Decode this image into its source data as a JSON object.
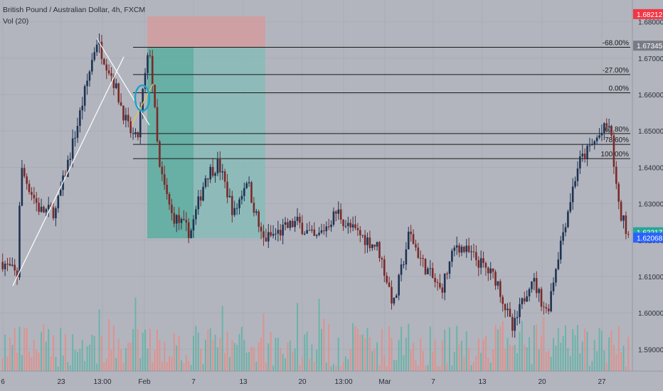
{
  "legend": {
    "symbol": "British Pound / Australian Dollar, 4h, FXCM",
    "volume": "Vol (20)"
  },
  "colors": {
    "background": "#b2b5be",
    "up_candle": "#1e3352",
    "down_candle": "#7a2a2a",
    "volume_up": "#5fb3a6",
    "volume_down": "#e68c86",
    "fib_line": "#1a1a1a",
    "stop_zone": "#d8999a",
    "target_zone": "#4fae9c",
    "target_zone_light": "#7fbdb6",
    "trendline": "#ffffff",
    "ellipse": "#1fa3c7",
    "badge_red": "#f23645",
    "badge_gray": "#787b86",
    "badge_green": "#26a69a",
    "badge_blue": "#2962ff"
  },
  "chart_data": {
    "type": "candlestick",
    "title": "British Pound / Australian Dollar, 4h, FXCM",
    "indicator": "Vol (20)",
    "y_range": [
      1.584,
      1.686
    ],
    "y_ticks": [
      "1.68000",
      "1.67000",
      "1.66000",
      "1.65000",
      "1.64000",
      "1.63000",
      "1.62000",
      "1.61000",
      "1.60000",
      "1.59000"
    ],
    "x_ticks": [
      "6",
      "23",
      "13:00",
      "Feb",
      "7",
      "13",
      "20",
      "13:00",
      "Mar",
      "7",
      "13",
      "20",
      "27"
    ],
    "price_path_anchors": [
      {
        "t": 0.0,
        "p": 1.614
      },
      {
        "t": 0.025,
        "p": 1.61
      },
      {
        "t": 0.028,
        "p": 1.64
      },
      {
        "t": 0.06,
        "p": 1.628
      },
      {
        "t": 0.085,
        "p": 1.628
      },
      {
        "t": 0.12,
        "p": 1.652
      },
      {
        "t": 0.15,
        "p": 1.675
      },
      {
        "t": 0.175,
        "p": 1.665
      },
      {
        "t": 0.2,
        "p": 1.651
      },
      {
        "t": 0.215,
        "p": 1.647
      },
      {
        "t": 0.225,
        "p": 1.662
      },
      {
        "t": 0.235,
        "p": 1.673
      },
      {
        "t": 0.25,
        "p": 1.64
      },
      {
        "t": 0.27,
        "p": 1.627
      },
      {
        "t": 0.3,
        "p": 1.622
      },
      {
        "t": 0.325,
        "p": 1.638
      },
      {
        "t": 0.345,
        "p": 1.641
      },
      {
        "t": 0.37,
        "p": 1.627
      },
      {
        "t": 0.39,
        "p": 1.637
      },
      {
        "t": 0.415,
        "p": 1.62
      },
      {
        "t": 0.44,
        "p": 1.622
      },
      {
        "t": 0.47,
        "p": 1.625
      },
      {
        "t": 0.5,
        "p": 1.62
      },
      {
        "t": 0.535,
        "p": 1.628
      },
      {
        "t": 0.55,
        "p": 1.624
      },
      {
        "t": 0.6,
        "p": 1.618
      },
      {
        "t": 0.625,
        "p": 1.602
      },
      {
        "t": 0.65,
        "p": 1.622
      },
      {
        "t": 0.67,
        "p": 1.614
      },
      {
        "t": 0.7,
        "p": 1.606
      },
      {
        "t": 0.725,
        "p": 1.619
      },
      {
        "t": 0.755,
        "p": 1.615
      },
      {
        "t": 0.79,
        "p": 1.609
      },
      {
        "t": 0.815,
        "p": 1.595
      },
      {
        "t": 0.845,
        "p": 1.61
      },
      {
        "t": 0.87,
        "p": 1.6
      },
      {
        "t": 0.89,
        "p": 1.618
      },
      {
        "t": 0.92,
        "p": 1.641
      },
      {
        "t": 0.95,
        "p": 1.648
      },
      {
        "t": 0.97,
        "p": 1.652
      },
      {
        "t": 0.985,
        "p": 1.628
      },
      {
        "t": 1.0,
        "p": 1.622
      }
    ],
    "fib_levels": [
      {
        "label": "-68.00%",
        "value": 1.673
      },
      {
        "label": "-27.00%",
        "value": 1.6655
      },
      {
        "label": "0.00%",
        "value": 1.6605
      },
      {
        "label": "61.80%",
        "value": 1.6493
      },
      {
        "label": "78.60%",
        "value": 1.6463
      },
      {
        "label": "100.00%",
        "value": 1.6424
      }
    ],
    "position": {
      "entry": 1.673,
      "stop": 1.6815,
      "target": 1.6205
    },
    "price_labels": [
      {
        "text": "1.68212",
        "value": 1.68212,
        "color": "badge_red"
      },
      {
        "text": "1.67345",
        "value": 1.67345,
        "color": "badge_gray"
      },
      {
        "text": "1.62217",
        "value": 1.62217,
        "color": "badge_green"
      },
      {
        "text": "1.62068",
        "value": 1.62068,
        "color": "badge_blue"
      }
    ],
    "grid": true
  }
}
